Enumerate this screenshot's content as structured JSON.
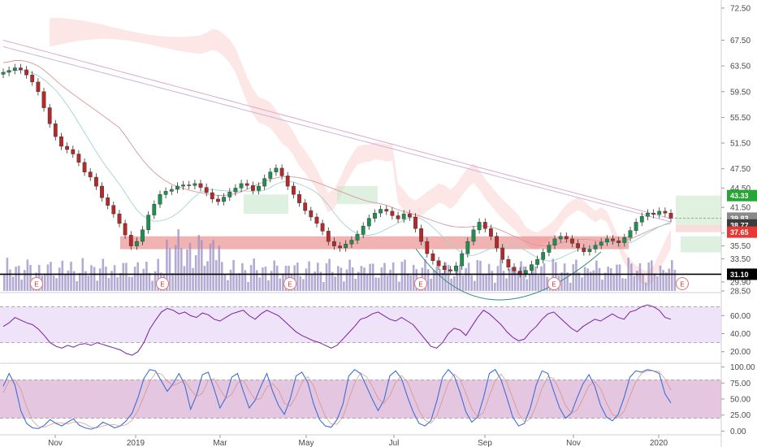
{
  "chart_data": [
    {
      "panel": "price",
      "type": "candlestick",
      "y_axis_side": "right",
      "ylim": [
        28.5,
        73.5
      ],
      "y_ticks": [
        "72.50",
        "67.50",
        "63.50",
        "59.50",
        "55.50",
        "51.50",
        "47.50",
        "44.50",
        "41.50",
        "37.50",
        "35.50",
        "33.50",
        "29.90",
        "28.50"
      ],
      "y_tick_values": [
        72.5,
        67.5,
        63.5,
        59.5,
        55.5,
        51.5,
        47.5,
        44.5,
        41.5,
        37.5,
        35.5,
        33.5,
        29.9,
        28.5
      ],
      "x_labels": [
        "Nov",
        "2019",
        "Mar",
        "May",
        "Jul",
        "Sep",
        "Nov",
        "2020"
      ],
      "x_label_index": [
        11,
        28,
        45,
        62,
        79,
        96,
        113,
        130
      ],
      "close_series": [
        62.5,
        62.8,
        63.2,
        62.9,
        62.1,
        61.0,
        59.5,
        57.0,
        54.5,
        52.5,
        51.0,
        50.5,
        49.8,
        48.5,
        47.0,
        46.2,
        44.8,
        43.0,
        41.8,
        40.5,
        39.0,
        37.2,
        35.5,
        36.2,
        38.0,
        40.3,
        42.0,
        43.5,
        44.0,
        44.3,
        44.8,
        45.0,
        44.9,
        45.2,
        44.6,
        43.8,
        42.8,
        42.4,
        43.1,
        43.9,
        44.5,
        45.2,
        44.9,
        44.1,
        44.8,
        46.0,
        47.0,
        47.6,
        46.4,
        44.8,
        43.5,
        42.2,
        41.0,
        40.0,
        39.0,
        37.8,
        36.2,
        35.5,
        35.2,
        35.8,
        36.4,
        37.3,
        38.6,
        39.8,
        40.6,
        41.2,
        40.9,
        40.2,
        39.7,
        40.5,
        40.0,
        38.2,
        36.2,
        34.3,
        33.2,
        32.4,
        31.8,
        31.6,
        32.4,
        34.3,
        36.2,
        38.0,
        39.2,
        38.2,
        37.0,
        35.2,
        33.4,
        32.2,
        31.6,
        31.2,
        31.7,
        32.6,
        33.4,
        34.5,
        35.6,
        36.6,
        37.0,
        36.6,
        35.9,
        35.2,
        34.6,
        35.0,
        35.6,
        36.1,
        36.6,
        36.3,
        36.0,
        36.8,
        37.9,
        39.2,
        40.1,
        40.6,
        40.4,
        40.9,
        40.6,
        39.8
      ],
      "candle_series_index_offset": 0,
      "last_labels": [
        {
          "text": "43.33",
          "color": "#26a636",
          "value": 43.33
        },
        {
          "text": "39.83",
          "color": "#8a8a8a",
          "value": 39.83
        },
        {
          "text": "38.77",
          "color": "#3c3c3c",
          "value": 38.77
        },
        {
          "text": "37.65",
          "color": "#e53935",
          "value": 37.65
        },
        {
          "text": "31.10",
          "color": "#000000",
          "value": 31.1
        }
      ],
      "support_zone": [
        35.0,
        37.0
      ],
      "horizontal_line": 31.1,
      "earnings_marker": "E",
      "earnings_index": [
        7,
        35,
        63,
        91,
        119,
        147
      ]
    },
    {
      "panel": "rsi",
      "type": "line",
      "y_axis_side": "right",
      "ylim": [
        8,
        82
      ],
      "y_ticks": [
        "60.00",
        "40.00",
        "20.00"
      ],
      "y_tick_values": [
        60,
        40,
        20
      ],
      "bands": [
        30,
        70
      ],
      "values": [
        48,
        52,
        58,
        55,
        52,
        50,
        45,
        38,
        30,
        26,
        24,
        27,
        25,
        28,
        29,
        27,
        30,
        28,
        26,
        24,
        22,
        18,
        16,
        20,
        30,
        45,
        55,
        64,
        68,
        66,
        62,
        64,
        60,
        58,
        63,
        61,
        56,
        54,
        58,
        62,
        64,
        66,
        60,
        56,
        62,
        66,
        63,
        60,
        54,
        48,
        42,
        38,
        35,
        32,
        30,
        27,
        24,
        27,
        34,
        41,
        48,
        56,
        58,
        62,
        64,
        60,
        56,
        54,
        58,
        54,
        50,
        42,
        34,
        26,
        24,
        30,
        40,
        46,
        44,
        38,
        48,
        58,
        66,
        62,
        56,
        50,
        42,
        36,
        32,
        34,
        42,
        48,
        56,
        62,
        64,
        58,
        52,
        46,
        42,
        48,
        52,
        56,
        54,
        58,
        62,
        58,
        56,
        64,
        66,
        70,
        72,
        70,
        66,
        58,
        56
      ]
    },
    {
      "panel": "stochastic",
      "type": "line",
      "y_axis_side": "right",
      "ylim": [
        -2,
        102
      ],
      "y_ticks": [
        "100.00",
        "75.00",
        "50.00",
        "25.00",
        "0.00"
      ],
      "y_tick_values": [
        100,
        75,
        50,
        25,
        0
      ],
      "bands": [
        20,
        80
      ],
      "series": [
        {
          "values": [
            70,
            90,
            72,
            32,
            12,
            5,
            4,
            9,
            18,
            12,
            8,
            14,
            19,
            9,
            5,
            3,
            6,
            14,
            10,
            5,
            8,
            16,
            28,
            52,
            82,
            96,
            94,
            78,
            62,
            74,
            90,
            72,
            34,
            56,
            88,
            92,
            66,
            36,
            52,
            84,
            90,
            62,
            36,
            48,
            70,
            90,
            62,
            40,
            26,
            50,
            86,
            92,
            76,
            42,
            18,
            8,
            6,
            18,
            42,
            86,
            96,
            90,
            70,
            50,
            32,
            48,
            86,
            94,
            82,
            54,
            30,
            12,
            8,
            16,
            46,
            84,
            96,
            86,
            60,
            30,
            14,
            22,
            52,
            90,
            96,
            80,
            52,
            22,
            8,
            12,
            36,
            72,
            94,
            90,
            62,
            36,
            20,
            28,
            52,
            74,
            88,
            70,
            40,
            22,
            16,
            26,
            52,
            84,
            94,
            92,
            96,
            94,
            90,
            58,
            44
          ]
        },
        {
          "values": [
            60,
            78,
            80,
            65,
            38,
            16,
            7,
            6,
            10,
            13,
            13,
            11,
            14,
            14,
            11,
            6,
            5,
            8,
            10,
            10,
            8,
            10,
            17,
            32,
            54,
            77,
            91,
            89,
            78,
            71,
            75,
            79,
            65,
            54,
            59,
            79,
            82,
            65,
            51,
            57,
            75,
            79,
            63,
            49,
            51,
            69,
            74,
            64,
            43,
            39,
            54,
            76,
            85,
            70,
            45,
            23,
            11,
            11,
            22,
            49,
            75,
            91,
            85,
            70,
            51,
            43,
            55,
            76,
            87,
            77,
            55,
            32,
            17,
            12,
            23,
            49,
            75,
            89,
            81,
            59,
            35,
            22,
            29,
            55,
            79,
            89,
            76,
            51,
            27,
            14,
            19,
            40,
            67,
            85,
            82,
            63,
            40,
            28,
            33,
            51,
            71,
            77,
            66,
            44,
            26,
            21,
            31,
            54,
            77,
            90,
            94,
            94,
            93,
            81,
            64
          ]
        }
      ]
    }
  ]
}
